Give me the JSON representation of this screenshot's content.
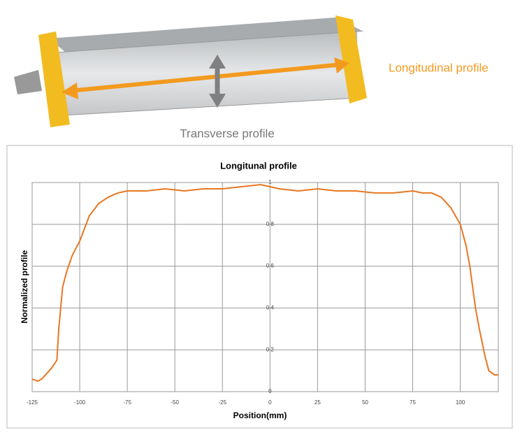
{
  "chart_data": {
    "type": "line",
    "title": "Longitunal profile",
    "x_label": "Position(mm)",
    "y_label": "Normalized profile",
    "annotations": [
      "Longitudinal profile",
      "Transverse profile"
    ],
    "xlim": [
      -125,
      120
    ],
    "ylim": [
      0,
      1
    ],
    "xticks": [
      -125,
      -100,
      -75,
      -50,
      -25,
      0,
      25,
      50,
      75,
      100
    ],
    "yticks": [
      0,
      0.2,
      0.4,
      0.6,
      0.8,
      1
    ],
    "grid": true,
    "series": [
      {
        "name": "Longitudinal profile",
        "color": "#e87722",
        "x": [
          -125,
          -122,
          -120,
          -117,
          -115,
          -112,
          -111,
          -109,
          -107,
          -104,
          -100,
          -95,
          -90,
          -85,
          -80,
          -75,
          -65,
          -55,
          -45,
          -35,
          -25,
          -15,
          -5,
          5,
          15,
          25,
          35,
          45,
          55,
          65,
          75,
          80,
          85,
          90,
          95,
          100,
          103,
          105,
          108,
          110,
          113,
          115,
          118,
          120
        ],
        "values": [
          0.06,
          0.05,
          0.06,
          0.09,
          0.11,
          0.15,
          0.3,
          0.5,
          0.57,
          0.65,
          0.72,
          0.84,
          0.9,
          0.93,
          0.95,
          0.96,
          0.96,
          0.97,
          0.96,
          0.97,
          0.97,
          0.98,
          0.99,
          0.97,
          0.96,
          0.97,
          0.96,
          0.96,
          0.95,
          0.95,
          0.96,
          0.95,
          0.95,
          0.93,
          0.88,
          0.8,
          0.7,
          0.6,
          0.4,
          0.3,
          0.17,
          0.1,
          0.08,
          0.08
        ]
      }
    ]
  }
}
